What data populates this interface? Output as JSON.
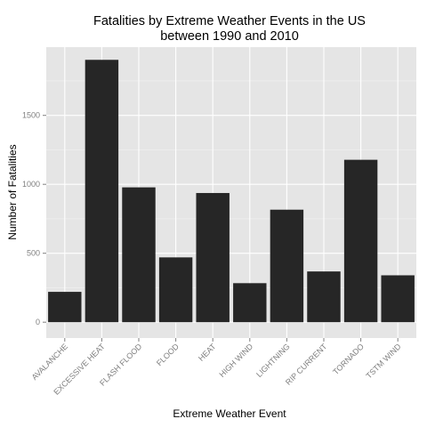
{
  "chart_data": {
    "type": "bar",
    "title_lines": [
      "Fatalities by Extreme Weather Events in the US",
      "between 1990 and 2010"
    ],
    "xlabel": "Extreme Weather Event",
    "ylabel": "Number of Fatalities",
    "categories": [
      "AVALANCHE",
      "EXCESSIVE HEAT",
      "FLASH FLOOD",
      "FLOOD",
      "HEAT",
      "HIGH WIND",
      "LIGHTNING",
      "RIP CURRENT",
      "TORNADO",
      "TSTM WIND"
    ],
    "values": [
      220,
      1903,
      978,
      470,
      937,
      283,
      816,
      368,
      1178,
      340
    ],
    "ylim": [
      -115,
      1995
    ],
    "yticks": [
      0,
      500,
      1000,
      1500
    ],
    "ytick_labels": [
      "0",
      "500",
      "1000",
      "1500"
    ],
    "grid": true,
    "colors": {
      "panel_background": "#e5e5e5",
      "grid_major": "#ffffff",
      "grid_minor": "#f2f2f2",
      "bar_fill": "#262626",
      "tick_label": "#7f7f7f"
    }
  }
}
